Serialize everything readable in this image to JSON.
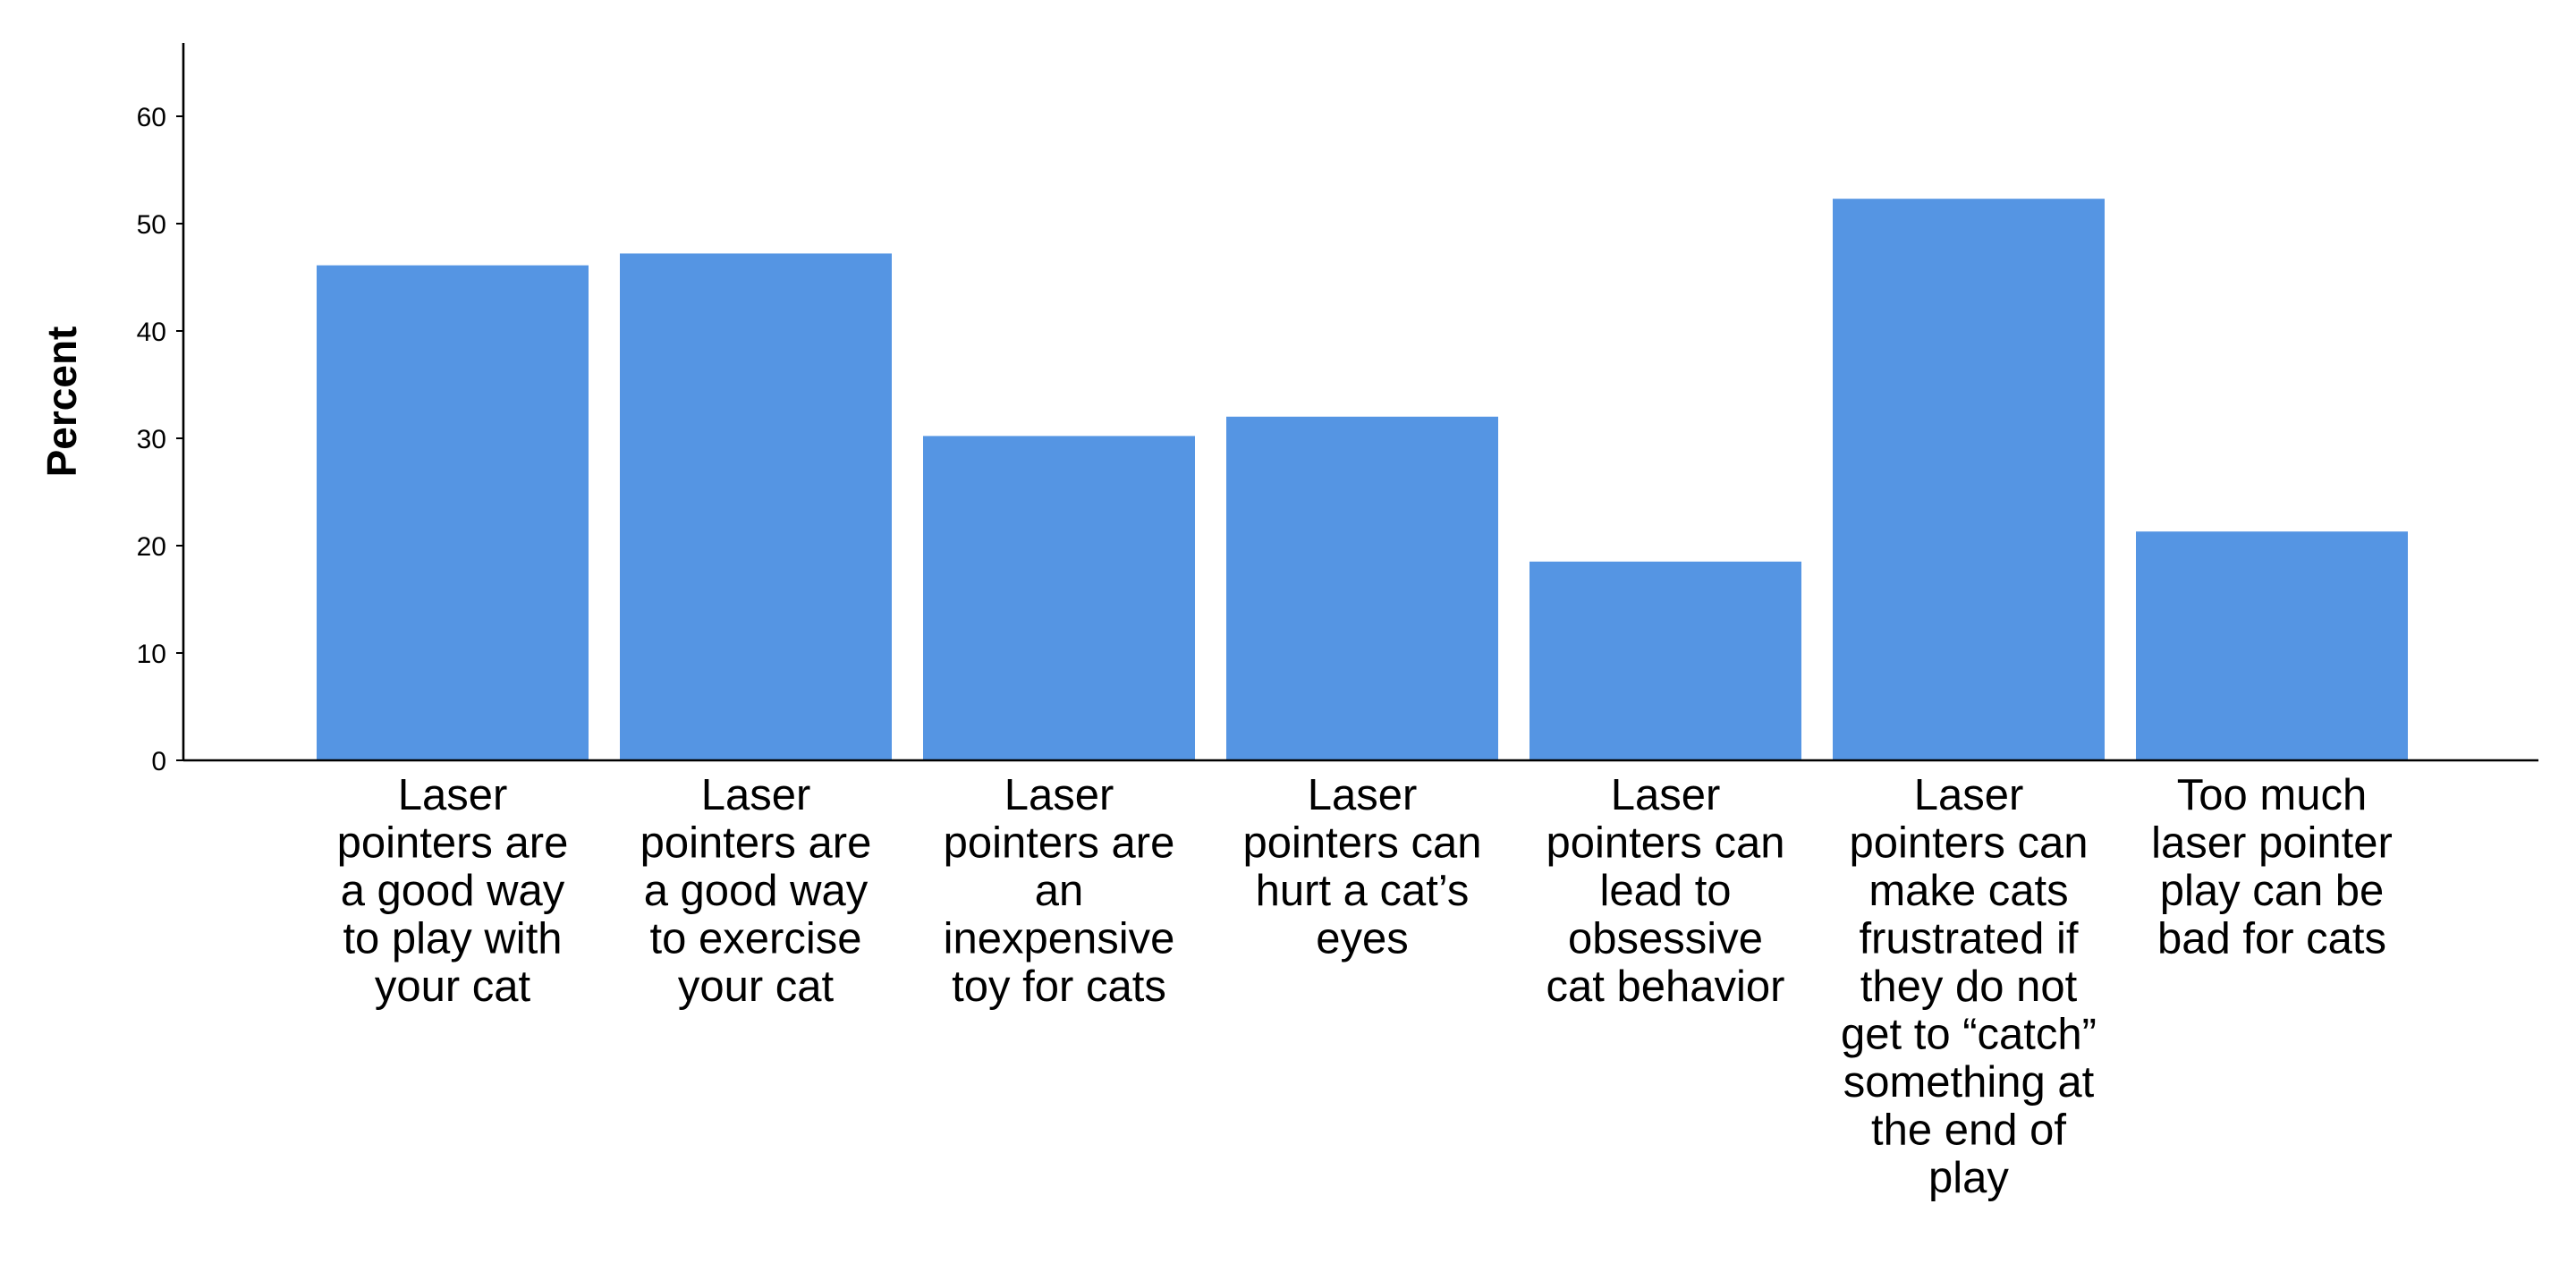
{
  "chart_data": {
    "type": "bar",
    "title": "",
    "xlabel": "",
    "ylabel": "Percent",
    "ylim": [
      0,
      67
    ],
    "yticks": [
      0,
      10,
      20,
      30,
      40,
      50,
      60
    ],
    "grid": false,
    "legend": "none",
    "bar_color": "#5595e3",
    "categories": [
      [
        "Laser",
        "pointers are",
        "a good way",
        "to play with",
        "your cat"
      ],
      [
        "Laser",
        "pointers are",
        "a good way",
        "to exercise",
        "your cat"
      ],
      [
        "Laser",
        "pointers are",
        "an",
        "inexpensive",
        "toy for cats"
      ],
      [
        "Laser",
        "pointers can",
        "hurt a cat’s",
        "eyes"
      ],
      [
        "Laser",
        "pointers can",
        "lead to",
        "obsessive",
        "cat behavior"
      ],
      [
        "Laser",
        "pointers can",
        "make cats",
        "frustrated if",
        "they do not",
        "get to “catch”",
        "something at",
        "the end of",
        "play"
      ],
      [
        "Too much",
        "laser pointer",
        "play can be",
        "bad for cats"
      ]
    ],
    "values": [
      46.2,
      47.3,
      30.3,
      32.1,
      18.6,
      52.4,
      21.4
    ]
  }
}
